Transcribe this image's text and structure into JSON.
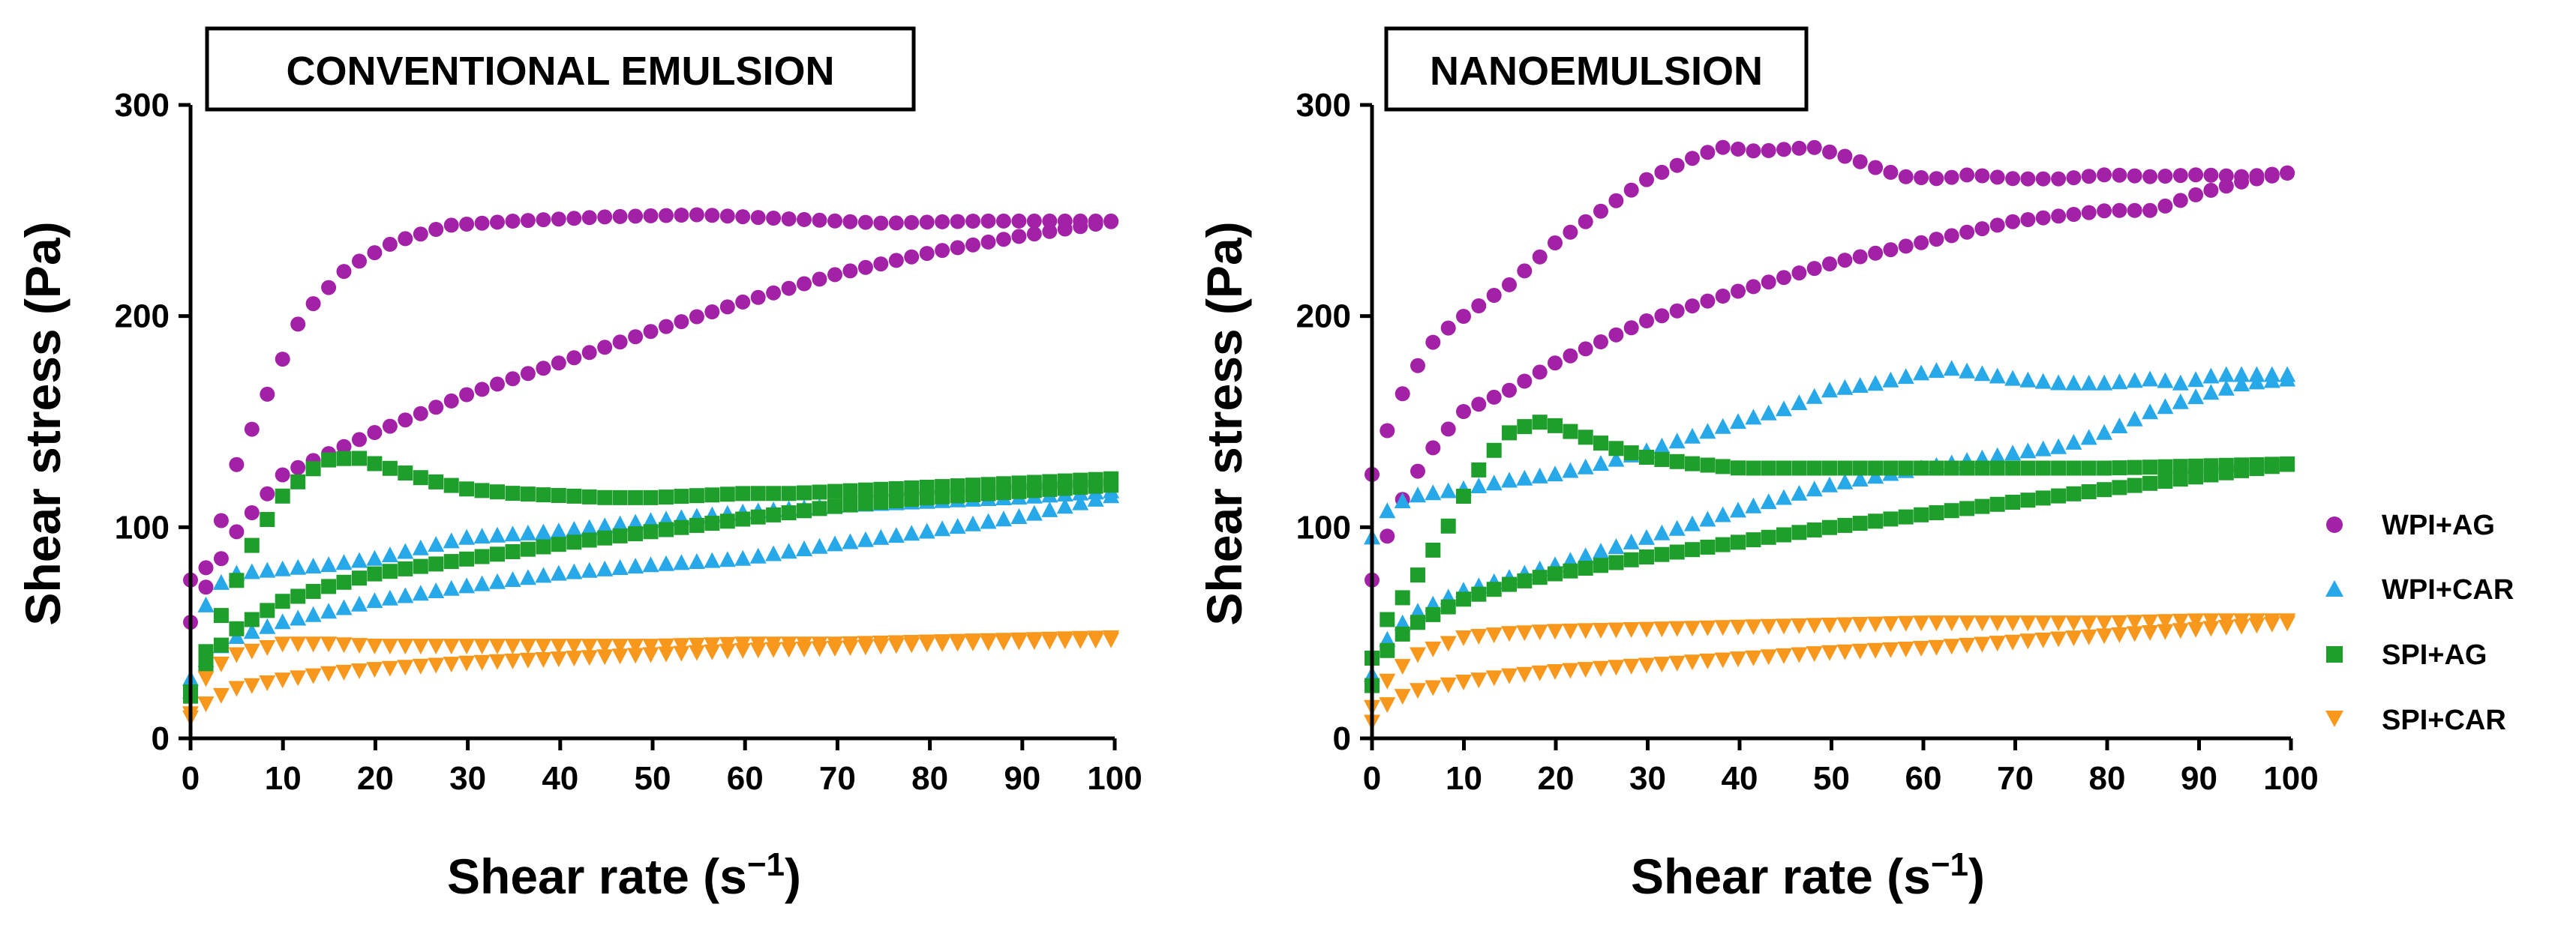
{
  "legend": [
    {
      "label": "WPI+AG",
      "color": "#A321A6",
      "marker": "circle"
    },
    {
      "label": "WPI+CAR",
      "color": "#27A8E8",
      "marker": "triangle-up"
    },
    {
      "label": "SPI+AG",
      "color": "#1E9E2A",
      "marker": "square"
    },
    {
      "label": "SPI+CAR",
      "color": "#F7981C",
      "marker": "triangle-down"
    }
  ],
  "chart_data": [
    {
      "type": "scatter",
      "title": "CONVENTIONAL EMULSION",
      "xlabel": "Shear rate (s",
      "xlabel_sup": "−1",
      "xlabel_close": ")",
      "ylabel": "Shear stress (Pa)",
      "xlim": [
        0,
        100
      ],
      "ylim": [
        0,
        300
      ],
      "xticks": [
        "0",
        "10",
        "20",
        "30",
        "40",
        "50",
        "60",
        "70",
        "80",
        "90",
        "100"
      ],
      "yticks": [
        "0",
        "100",
        "200",
        "300"
      ],
      "series": [
        {
          "name": "WPI+AG",
          "branch": "up",
          "x": [
            0,
            2,
            5,
            8,
            12,
            17,
            22,
            28,
            35,
            45,
            55,
            65,
            75,
            85,
            92,
            100
          ],
          "y": [
            75,
            82,
            130,
            160,
            200,
            223,
            235,
            243,
            245,
            247,
            248,
            246,
            244,
            245,
            245,
            245
          ]
        },
        {
          "name": "WPI+AG",
          "branch": "down",
          "x": [
            0,
            2,
            5,
            10,
            15,
            20,
            30,
            40,
            50,
            60,
            70,
            80,
            90,
            100
          ],
          "y": [
            55,
            75,
            98,
            125,
            135,
            145,
            163,
            178,
            193,
            207,
            220,
            230,
            238,
            245
          ]
        },
        {
          "name": "WPI+CAR",
          "branch": "up",
          "x": [
            0,
            2,
            5,
            10,
            15,
            20,
            25,
            30,
            40,
            50,
            60,
            70,
            80,
            90,
            100
          ],
          "y": [
            28,
            70,
            78,
            80,
            82,
            85,
            90,
            95,
            98,
            103,
            107,
            110,
            112,
            114,
            117
          ]
        },
        {
          "name": "WPI+CAR",
          "branch": "down",
          "x": [
            0,
            2,
            5,
            10,
            20,
            30,
            40,
            50,
            60,
            70,
            80,
            90,
            100
          ],
          "y": [
            22,
            40,
            48,
            55,
            65,
            72,
            78,
            82,
            85,
            92,
            98,
            105,
            115
          ]
        },
        {
          "name": "SPI+AG",
          "branch": "up",
          "x": [
            0,
            2,
            5,
            7,
            10,
            13,
            15,
            18,
            20,
            23,
            26,
            30,
            35,
            40,
            45,
            50,
            55,
            60,
            65,
            70,
            75,
            80,
            85,
            90,
            95,
            100
          ],
          "y": [
            22,
            45,
            75,
            95,
            115,
            127,
            132,
            133,
            130,
            126,
            122,
            118,
            116,
            115,
            114,
            114,
            115,
            116,
            116,
            117,
            118,
            119,
            120,
            121,
            122,
            123
          ]
        },
        {
          "name": "SPI+AG",
          "branch": "down",
          "x": [
            0,
            2,
            5,
            10,
            15,
            20,
            30,
            40,
            50,
            60,
            70,
            80,
            90,
            100
          ],
          "y": [
            20,
            38,
            52,
            65,
            72,
            78,
            85,
            92,
            98,
            104,
            110,
            114,
            117,
            120
          ]
        },
        {
          "name": "SPI+CAR",
          "branch": "up",
          "x": [
            0,
            2,
            5,
            10,
            15,
            20,
            30,
            40,
            50,
            60,
            70,
            80,
            90,
            100
          ],
          "y": [
            12,
            32,
            40,
            45,
            45,
            44,
            44,
            44,
            44,
            45,
            45,
            46,
            47,
            48
          ]
        },
        {
          "name": "SPI+CAR",
          "branch": "down",
          "x": [
            0,
            2,
            5,
            10,
            15,
            20,
            30,
            40,
            50,
            60,
            70,
            80,
            90,
            100
          ],
          "y": [
            10,
            18,
            24,
            28,
            31,
            33,
            36,
            38,
            40,
            42,
            43,
            45,
            46,
            47
          ]
        }
      ]
    },
    {
      "type": "scatter",
      "title": "NANOEMULSION",
      "xlabel": "Shear rate (s",
      "xlabel_sup": "−1",
      "xlabel_close": ")",
      "ylabel": "Shear stress (Pa)",
      "xlim": [
        0,
        100
      ],
      "ylim": [
        0,
        300
      ],
      "xticks": [
        "0",
        "10",
        "20",
        "30",
        "40",
        "50",
        "60",
        "70",
        "80",
        "90",
        "100"
      ],
      "yticks": [
        "0",
        "100",
        "200",
        "300"
      ],
      "series": [
        {
          "name": "WPI+AG",
          "branch": "up",
          "x": [
            0,
            2,
            4,
            7,
            10,
            15,
            20,
            25,
            30,
            35,
            38,
            42,
            48,
            52,
            55,
            58,
            62,
            65,
            70,
            75,
            80,
            85,
            90,
            95,
            100
          ],
          "y": [
            125,
            150,
            170,
            190,
            200,
            215,
            235,
            250,
            265,
            275,
            280,
            278,
            280,
            275,
            270,
            266,
            265,
            267,
            265,
            265,
            267,
            266,
            267,
            266,
            268
          ]
        },
        {
          "name": "WPI+AG",
          "branch": "down",
          "x": [
            0,
            2,
            4,
            7,
            10,
            15,
            20,
            30,
            40,
            50,
            60,
            70,
            80,
            85,
            90,
            95,
            100
          ],
          "y": [
            75,
            100,
            120,
            140,
            155,
            165,
            178,
            198,
            212,
            225,
            235,
            245,
            250,
            250,
            258,
            264,
            268
          ]
        },
        {
          "name": "WPI+CAR",
          "branch": "up",
          "x": [
            0,
            2,
            5,
            10,
            15,
            20,
            25,
            30,
            35,
            40,
            45,
            50,
            55,
            60,
            63,
            67,
            70,
            75,
            80,
            85,
            88,
            92,
            96,
            100
          ],
          "y": [
            95,
            110,
            115,
            118,
            122,
            125,
            130,
            136,
            143,
            150,
            156,
            165,
            168,
            173,
            175,
            172,
            170,
            168,
            168,
            170,
            168,
            172,
            172,
            172
          ]
        },
        {
          "name": "WPI+CAR",
          "branch": "down",
          "x": [
            0,
            2,
            5,
            10,
            20,
            30,
            40,
            50,
            60,
            70,
            75,
            80,
            85,
            90,
            95,
            100
          ],
          "y": [
            30,
            50,
            60,
            70,
            82,
            95,
            108,
            120,
            128,
            135,
            138,
            145,
            155,
            162,
            168,
            170
          ]
        },
        {
          "name": "SPI+AG",
          "branch": "up",
          "x": [
            0,
            2,
            4,
            6,
            8,
            10,
            12,
            15,
            18,
            20,
            23,
            26,
            30,
            35,
            40,
            45,
            50,
            55,
            60,
            70,
            80,
            90,
            100
          ],
          "y": [
            38,
            60,
            70,
            85,
            98,
            115,
            130,
            145,
            150,
            148,
            143,
            138,
            133,
            130,
            128,
            128,
            128,
            128,
            128,
            128,
            128,
            129,
            130
          ]
        },
        {
          "name": "SPI+AG",
          "branch": "down",
          "x": [
            0,
            2,
            5,
            10,
            15,
            20,
            30,
            40,
            50,
            60,
            70,
            80,
            90,
            100
          ],
          "y": [
            25,
            45,
            55,
            66,
            73,
            78,
            86,
            93,
            100,
            106,
            112,
            118,
            124,
            130
          ]
        },
        {
          "name": "SPI+CAR",
          "branch": "up",
          "x": [
            0,
            2,
            5,
            10,
            15,
            20,
            30,
            40,
            50,
            60,
            70,
            80,
            90,
            100
          ],
          "y": [
            15,
            30,
            40,
            48,
            50,
            51,
            52,
            53,
            54,
            55,
            55,
            55,
            56,
            56
          ]
        },
        {
          "name": "SPI+CAR",
          "branch": "down",
          "x": [
            0,
            2,
            5,
            10,
            15,
            20,
            30,
            40,
            50,
            60,
            70,
            80,
            90,
            100
          ],
          "y": [
            8,
            18,
            23,
            27,
            30,
            32,
            35,
            38,
            41,
            43,
            46,
            49,
            52,
            55
          ]
        }
      ]
    }
  ]
}
